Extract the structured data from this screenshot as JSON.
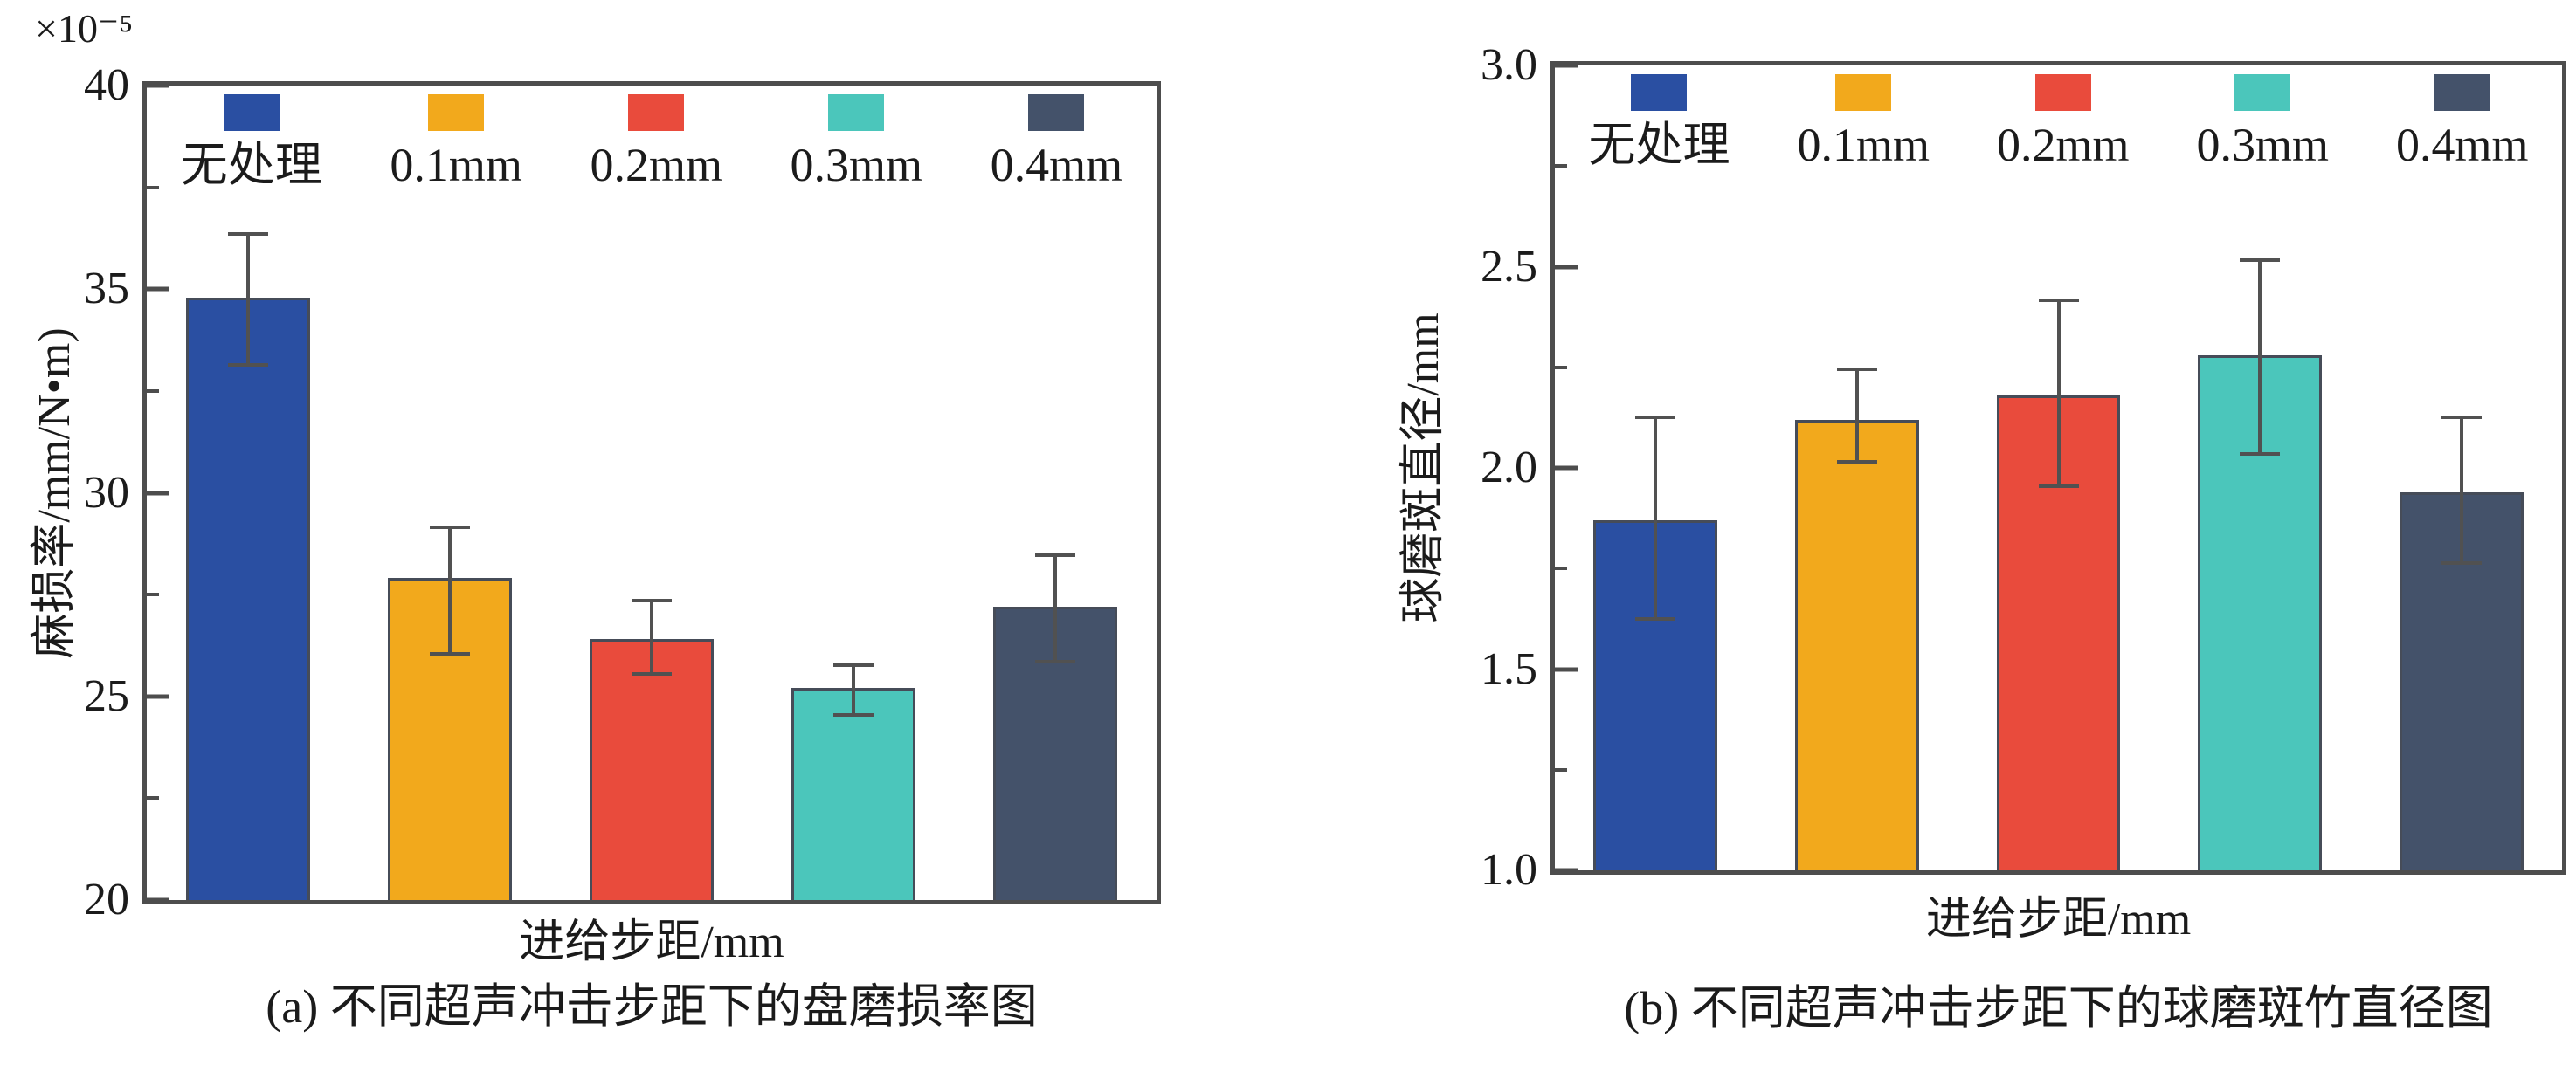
{
  "figure": {
    "background": "#ffffff",
    "axis_color": "#4d4d4d",
    "error_bar_color": "#515151",
    "text_color": "#1b1b1b"
  },
  "chart_data": [
    {
      "type": "bar",
      "panel": "(a)",
      "caption": "(a) 不同超声冲击步距下的盘磨损率图",
      "xlabel": "进给步距/mm",
      "ylabel": "麻损率/mm/N•m)",
      "y_scale_label": "×10⁻⁵",
      "categories": [
        "无处理",
        "0.1mm",
        "0.2mm",
        "0.3mm",
        "0.4mm"
      ],
      "values": [
        34.8,
        27.9,
        26.4,
        25.2,
        27.2
      ],
      "error_low": [
        33.1,
        26.0,
        25.5,
        24.5,
        25.8
      ],
      "error_high": [
        36.4,
        29.2,
        27.4,
        25.8,
        28.5
      ],
      "bar_colors": [
        "#2a4fa2",
        "#f2a91c",
        "#e94b3c",
        "#4bc6bb",
        "#44526a"
      ],
      "ylim": [
        20,
        40
      ],
      "yticks": [
        20,
        25,
        30,
        35,
        40
      ],
      "ytick_labels": [
        "20",
        "25",
        "30",
        "35",
        "40"
      ],
      "yminor": [
        22.5,
        27.5,
        32.5,
        37.5
      ],
      "legend_position": "top-inside",
      "grid": false
    },
    {
      "type": "bar",
      "panel": "(b)",
      "caption": "(b) 不同超声冲击步距下的球磨斑竹直径图",
      "xlabel": "进给步距/mm",
      "ylabel": "球磨斑直径/mm",
      "y_scale_label": "",
      "categories": [
        "无处理",
        "0.1mm",
        "0.2mm",
        "0.3mm",
        "0.4mm"
      ],
      "values": [
        1.87,
        2.12,
        2.18,
        2.28,
        1.94
      ],
      "error_low": [
        1.62,
        2.01,
        1.95,
        2.03,
        1.76
      ],
      "error_high": [
        2.13,
        2.25,
        2.42,
        2.52,
        2.13
      ],
      "bar_colors": [
        "#2a4fa2",
        "#f2a91c",
        "#e94b3c",
        "#4bc6bb",
        "#44526a"
      ],
      "ylim": [
        1.0,
        3.0
      ],
      "yticks": [
        1.0,
        1.5,
        2.0,
        2.5,
        3.0
      ],
      "ytick_labels": [
        "1.0",
        "1.5",
        "2.0",
        "2.5",
        "3.0"
      ],
      "yminor": [
        1.25,
        1.75,
        2.25,
        2.75
      ],
      "legend_position": "top-inside",
      "grid": false
    }
  ]
}
